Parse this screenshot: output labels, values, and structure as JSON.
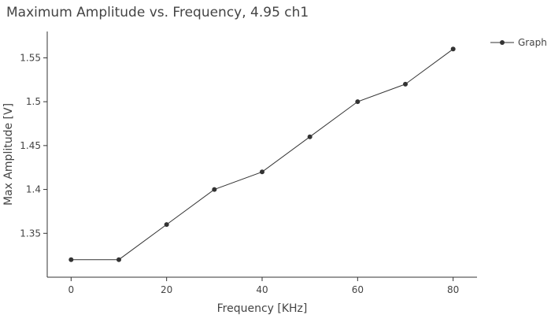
{
  "chart_data": {
    "type": "line",
    "title": "Maximum Amplitude vs. Frequency, 4.95 ch1",
    "xlabel": "Frequency [KHz]",
    "ylabel": "Max Amplitude [V]",
    "xlim": [
      -5,
      85
    ],
    "ylim": [
      1.3,
      1.58
    ],
    "xticks": [
      0,
      20,
      40,
      60,
      80
    ],
    "yticks": [
      1.35,
      1.4,
      1.45,
      1.5,
      1.55
    ],
    "ytick_labels": [
      "1.35",
      "1.4",
      "1.45",
      "1.5",
      "1.55"
    ],
    "grid": false,
    "legend_position": "top-right",
    "series": [
      {
        "name": "Graph",
        "color": "#333333",
        "x": [
          0,
          10,
          20,
          30,
          40,
          50,
          60,
          70,
          80
        ],
        "y": [
          1.32,
          1.32,
          1.36,
          1.4,
          1.42,
          1.46,
          1.5,
          1.52,
          1.56
        ]
      }
    ]
  }
}
